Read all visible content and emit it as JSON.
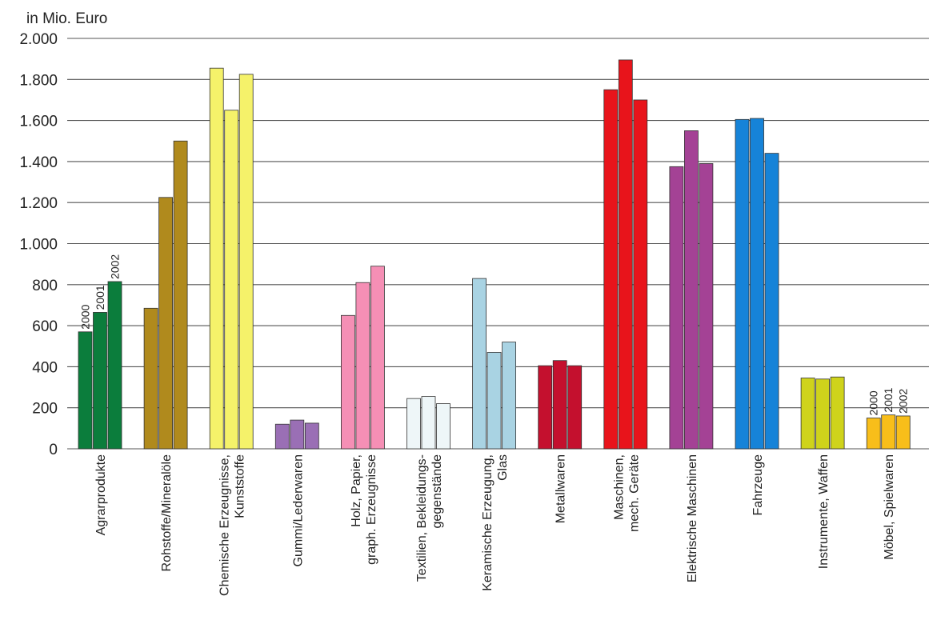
{
  "chart_data": {
    "type": "bar",
    "title": "",
    "ylabel": "in Mio. Euro",
    "xlabel": "",
    "ylim": [
      0,
      2000
    ],
    "grid": true,
    "yticks": [
      0,
      200,
      400,
      600,
      800,
      1000,
      1200,
      1400,
      1600,
      1800,
      2000
    ],
    "ytick_labels": [
      "0",
      "200",
      "400",
      "600",
      "800",
      "1.000",
      "1.200",
      "1.400",
      "1.600",
      "1.800",
      "2.000"
    ],
    "years": [
      "2000",
      "2001",
      "2002"
    ],
    "categories": [
      {
        "lines": [
          "Agrarprodukte"
        ],
        "values": [
          570,
          665,
          815
        ],
        "color": "#0b7d3c"
      },
      {
        "lines": [
          "Rohstoffe/Mineralöle"
        ],
        "values": [
          685,
          1225,
          1500
        ],
        "color": "#b08a1d"
      },
      {
        "lines": [
          "Chemische Erzeugnisse,",
          "Kunststoffe"
        ],
        "values": [
          1855,
          1650,
          1825
        ],
        "color": "#f5f26a"
      },
      {
        "lines": [
          "Gummi/Lederwaren"
        ],
        "values": [
          120,
          140,
          125
        ],
        "color": "#9a6fb5"
      },
      {
        "lines": [
          "Holz, Papier,",
          "graph. Erzeugnisse"
        ],
        "values": [
          650,
          810,
          890
        ],
        "color": "#f58fb5"
      },
      {
        "lines": [
          "Textilien, Bekleidungs-",
          "gegenstände"
        ],
        "values": [
          245,
          255,
          220
        ],
        "color": "#eef6f8"
      },
      {
        "lines": [
          "Keramische Erzeugung,",
          "Glas"
        ],
        "values": [
          830,
          470,
          520
        ],
        "color": "#a9d3e3"
      },
      {
        "lines": [
          "Metallwaren"
        ],
        "values": [
          405,
          430,
          405
        ],
        "color": "#c4102e"
      },
      {
        "lines": [
          "Maschinen,",
          "mech. Geräte"
        ],
        "values": [
          1750,
          1895,
          1700
        ],
        "color": "#e8141b"
      },
      {
        "lines": [
          "Elektrische Maschinen"
        ],
        "values": [
          1375,
          1550,
          1390
        ],
        "color": "#a44295"
      },
      {
        "lines": [
          "Fahrzeuge"
        ],
        "values": [
          1605,
          1610,
          1440
        ],
        "color": "#1683d8"
      },
      {
        "lines": [
          "Instrumente, Waffen"
        ],
        "values": [
          345,
          340,
          350
        ],
        "color": "#cfd31b"
      },
      {
        "lines": [
          "Möbel, Spielwaren"
        ],
        "values": [
          150,
          165,
          160
        ],
        "color": "#f8be1a"
      }
    ],
    "year_labels_on": [
      "Agrarprodukte",
      "Möbel, Spielwaren"
    ]
  }
}
